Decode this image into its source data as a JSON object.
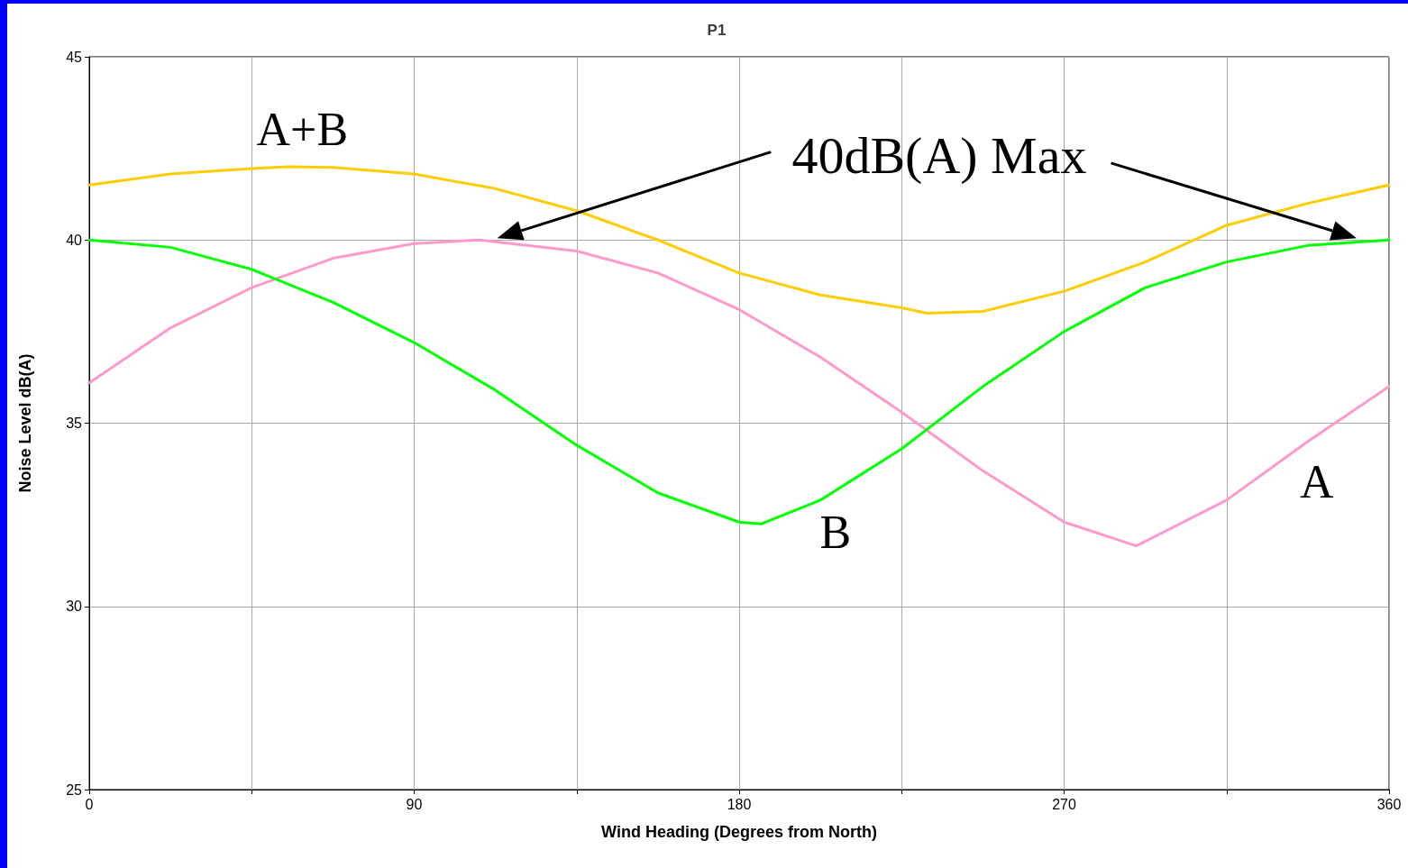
{
  "chart_data": {
    "type": "line",
    "title": "P1",
    "xlabel": "Wind Heading (Degrees from North)",
    "ylabel": "Noise Level dB(A)",
    "xlim": [
      0,
      360
    ],
    "xticks": [
      0,
      {
        "value": 45,
        "label": null
      },
      90,
      {
        "value": 135,
        "label": null
      },
      180,
      {
        "value": 225,
        "label": null
      },
      270,
      {
        "value": 315,
        "label": null
      },
      360
    ],
    "ylim": [
      25,
      45
    ],
    "yticks": [
      25,
      30,
      35,
      40,
      45
    ],
    "grid": true,
    "legend": false,
    "marker": "none",
    "line_style": "solid",
    "annotations": [
      "40dB(A) Max"
    ],
    "series": [
      {
        "name": "A",
        "color": "#ff99cc",
        "x": [
          0,
          22.5,
          45,
          67.5,
          90,
          108,
          135,
          157.5,
          180,
          202.5,
          225,
          247.5,
          270,
          290,
          315,
          337.5,
          360
        ],
        "values": [
          36.1,
          37.6,
          38.7,
          39.5,
          39.9,
          40,
          39.7,
          39.1,
          38.1,
          36.8,
          35.3,
          33.7,
          32.3,
          31.65,
          32.9,
          34.5,
          36.0
        ]
      },
      {
        "name": "B",
        "color": "#00ff00",
        "x": [
          0,
          22.5,
          45,
          67.5,
          90,
          112.5,
          135,
          157.5,
          180,
          186,
          202.5,
          225,
          247.5,
          270,
          292.5,
          315,
          337.5,
          360
        ],
        "values": [
          40,
          39.8,
          39.2,
          38.3,
          37.2,
          35.9,
          34.4,
          33.1,
          32.3,
          32.25,
          32.9,
          34.3,
          36.0,
          37.5,
          38.7,
          39.4,
          39.85,
          40
        ]
      },
      {
        "name": "A+B",
        "color": "#ffcc00",
        "x": [
          0,
          22.5,
          45,
          55,
          67.5,
          90,
          112.5,
          135,
          157.5,
          180,
          202.5,
          225,
          232,
          247.5,
          270,
          292.5,
          315,
          337.5,
          360
        ],
        "values": [
          41.5,
          41.8,
          41.95,
          42,
          41.98,
          41.8,
          41.4,
          40.8,
          40.0,
          39.1,
          38.5,
          38.15,
          38.0,
          38.05,
          38.6,
          39.4,
          40.4,
          41.0,
          41.5
        ]
      }
    ]
  }
}
